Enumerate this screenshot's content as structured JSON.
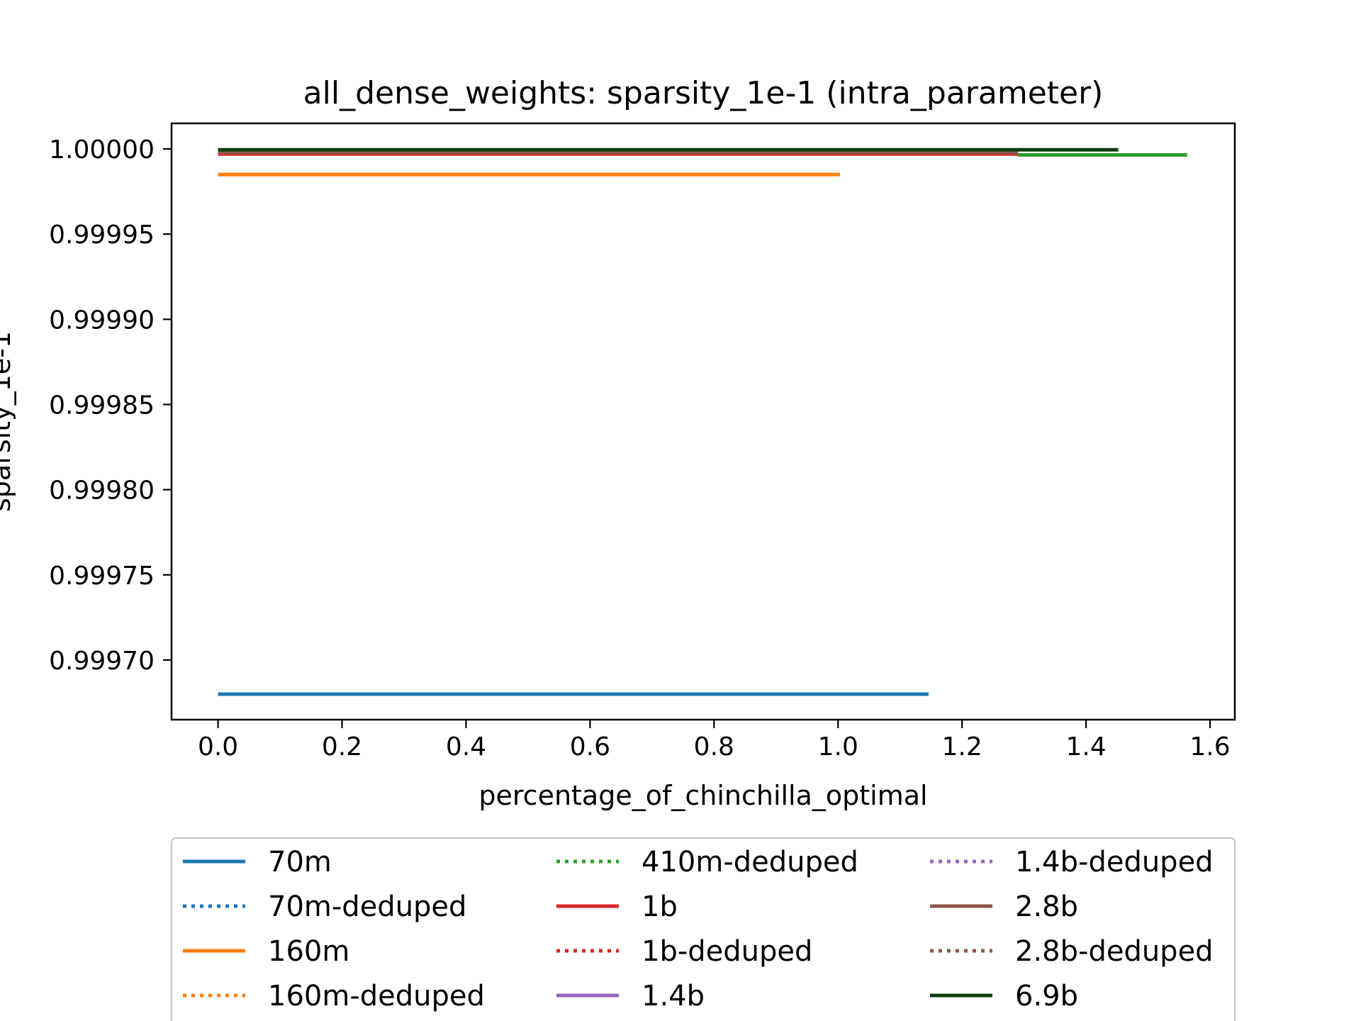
{
  "chart_data": {
    "type": "line",
    "title": "all_dense_weights: sparsity_1e-1 (intra_parameter)",
    "xlabel": "percentage_of_chinchilla_optimal",
    "ylabel": "sparsity_1e-1",
    "xlim": [
      -0.075,
      1.64
    ],
    "ylim": [
      0.999665,
      1.000015
    ],
    "xticks": [
      0.0,
      0.2,
      0.4,
      0.6,
      0.8,
      1.0,
      1.2,
      1.4,
      1.6
    ],
    "xtick_labels": [
      "0.0",
      "0.2",
      "0.4",
      "0.6",
      "0.8",
      "1.0",
      "1.2",
      "1.4",
      "1.6"
    ],
    "yticks": [
      0.9997,
      0.99975,
      0.9998,
      0.99985,
      0.9999,
      0.99995,
      1.0
    ],
    "ytick_labels": [
      "0.99970",
      "0.99975",
      "0.99980",
      "0.99985",
      "0.99990",
      "0.99995",
      "1.00000"
    ],
    "grid": false,
    "legend_placement": "below plot, 3 columns",
    "series": [
      {
        "name": "70m",
        "color": "#1f77b4",
        "style": "solid",
        "x": [
          0.0,
          1.146
        ],
        "y": [
          0.99968,
          0.99968
        ]
      },
      {
        "name": "70m-deduped",
        "color": "#1f77b4",
        "style": "dotted",
        "x": [],
        "y": []
      },
      {
        "name": "160m",
        "color": "#ff7f0e",
        "style": "solid",
        "x": [
          0.0,
          1.003
        ],
        "y": [
          0.999985,
          0.999985
        ]
      },
      {
        "name": "160m-deduped",
        "color": "#ff7f0e",
        "style": "dotted",
        "x": [
          0.0,
          1.003
        ],
        "y": [
          0.999985,
          0.999985
        ]
      },
      {
        "name": "410m-deduped",
        "color": "#2ca02c",
        "style": "dotted",
        "x": [],
        "y": []
      },
      {
        "name": "1b",
        "color": "#d62728",
        "style": "solid",
        "x": [
          0.0,
          1.29
        ],
        "y": [
          0.999997,
          0.999997
        ]
      },
      {
        "name": "1b-deduped",
        "color": "#d62728",
        "style": "dotted",
        "x": [],
        "y": []
      },
      {
        "name": "1.4b",
        "color": "#9467bd",
        "style": "solid",
        "x": [],
        "y": []
      },
      {
        "name": "1.4b-deduped",
        "color": "#9467bd",
        "style": "dotted",
        "x": [],
        "y": []
      },
      {
        "name": "2.8b",
        "color": "#8c564b",
        "style": "solid",
        "x": [
          0.0,
          1.29
        ],
        "y": [
          0.999998,
          0.999998
        ]
      },
      {
        "name": "2.8b-deduped",
        "color": "#8c564b",
        "style": "dotted",
        "x": [],
        "y": []
      },
      {
        "name": "6.9b",
        "color": "#0b3d0b",
        "style": "solid",
        "x": [
          0.0,
          1.452
        ],
        "y": [
          0.9999995,
          0.9999995
        ]
      },
      {
        "name": "",
        "color": "#2ca02c",
        "style": "solid",
        "x": [
          1.29,
          1.563
        ],
        "y": [
          0.9999965,
          0.9999965
        ]
      }
    ]
  }
}
